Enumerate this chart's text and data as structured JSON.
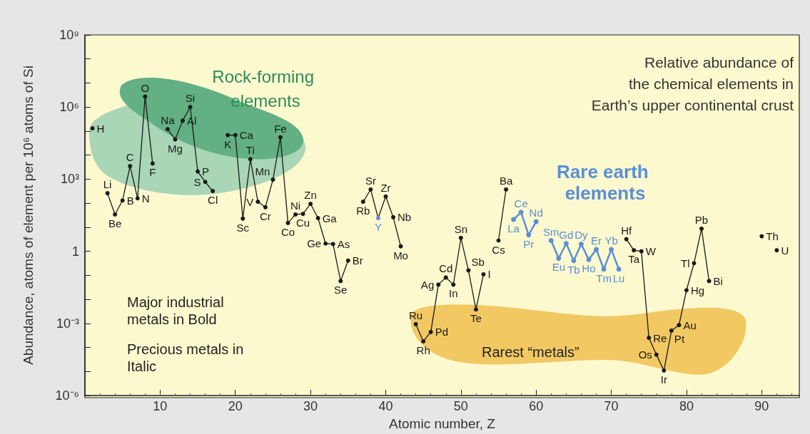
{
  "chart_data": {
    "type": "line",
    "title": "Relative abundance of\nthe chemical elements in\nEarth’s upper continental crust",
    "xlabel": "Atomic number, Z",
    "ylabel": "Abundance, atoms of element per 10⁶ atoms of Si",
    "log": true,
    "grid": false,
    "legend": false,
    "marker": "circle",
    "line_style": "solid",
    "xlim": [
      0,
      95
    ],
    "xticks": [
      10,
      20,
      30,
      40,
      50,
      60,
      70,
      80,
      90
    ],
    "ylim": [
      1e-06,
      1000000000
    ],
    "yticks": [
      {
        "value": 1e-06,
        "label": "10⁻⁶"
      },
      {
        "value": 1e-05,
        "label": null
      },
      {
        "value": 0.0001,
        "label": null
      },
      {
        "value": 0.001,
        "label": "10⁻³"
      },
      {
        "value": 0.01,
        "label": null
      },
      {
        "value": 0.1,
        "label": null
      },
      {
        "value": 1,
        "label": "1"
      },
      {
        "value": 10,
        "label": null
      },
      {
        "value": 100,
        "label": null
      },
      {
        "value": 1000,
        "label": "10³"
      },
      {
        "value": 10000,
        "label": null
      },
      {
        "value": 100000,
        "label": null
      },
      {
        "value": 1000000,
        "label": "10⁶"
      },
      {
        "value": 10000000,
        "label": null
      },
      {
        "value": 100000000,
        "label": null
      },
      {
        "value": 1000000000,
        "label": "10⁹"
      }
    ],
    "series": [
      {
        "color": "#1a1a1a",
        "x": [
          1,
          2,
          3,
          4,
          5,
          6,
          7,
          8,
          9,
          10,
          11,
          12,
          13,
          14,
          15,
          16,
          17,
          18,
          19,
          20,
          21,
          22,
          23,
          24,
          25,
          26,
          27,
          28,
          29,
          30,
          31,
          32,
          33,
          34,
          35,
          36,
          37,
          38,
          39,
          40,
          41,
          42,
          43,
          44,
          45,
          46,
          47,
          48,
          49,
          50,
          51,
          52,
          53,
          54,
          55,
          56,
          57,
          58,
          59,
          60,
          61,
          62,
          63,
          64,
          65,
          66,
          67,
          68,
          69,
          70,
          71,
          72,
          73,
          74,
          75,
          76,
          77,
          78,
          79,
          80,
          81,
          82,
          83,
          84,
          85,
          86,
          87,
          88,
          89,
          90,
          91,
          92
        ],
        "values": [
          130000,
          null,
          260,
          34,
          130,
          3500,
          160,
          2700000,
          4500,
          null,
          120000,
          45000,
          270000,
          1000000,
          2100,
          770,
          320,
          null,
          68000,
          68000,
          23,
          6800,
          115,
          68,
          950,
          55000,
          15,
          34,
          36,
          94,
          24,
          2.1,
          2,
          0.058,
          0.41,
          null,
          115,
          370,
          24,
          190,
          26,
          1.6,
          null,
          0.00093,
          0.00018,
          0.00044,
          0.041,
          0.081,
          0.041,
          3.6,
          0.16,
          0.0038,
          0.11,
          null,
          2.8,
          370,
          null,
          null,
          null,
          null,
          null,
          null,
          null,
          null,
          null,
          null,
          null,
          null,
          null,
          null,
          null,
          3.2,
          1.1,
          1,
          0.00025,
          5e-05,
          1.1e-05,
          0.0005,
          0.00085,
          0.024,
          0.32,
          8.7,
          0.058,
          null,
          null,
          null,
          null,
          null,
          null,
          4.2,
          null,
          1.1
        ],
        "colors": [
          "#1a1a1a",
          "#1a1a1a",
          "#1a1a1a",
          "#1a1a1a",
          "#1a1a1a",
          "#1a1a1a",
          "#1a1a1a",
          "#1a1a1a",
          "#1a1a1a",
          "#1a1a1a",
          "#1a1a1a",
          "#1a1a1a",
          "#1a1a1a",
          "#1a1a1a",
          "#1a1a1a",
          "#1a1a1a",
          "#1a1a1a",
          "#1a1a1a",
          "#1a1a1a",
          "#1a1a1a",
          "#1a1a1a",
          "#1a1a1a",
          "#1a1a1a",
          "#1a1a1a",
          "#1a1a1a",
          "#1a1a1a",
          "#1a1a1a",
          "#1a1a1a",
          "#1a1a1a",
          "#1a1a1a",
          "#1a1a1a",
          "#1a1a1a",
          "#1a1a1a",
          "#1a1a1a",
          "#1a1a1a",
          "#1a1a1a",
          "#1a1a1a",
          "#1a1a1a",
          "#5b8fd6",
          "#1a1a1a",
          "#1a1a1a",
          "#1a1a1a",
          "#1a1a1a",
          "#1a1a1a",
          "#1a1a1a",
          "#1a1a1a",
          "#1a1a1a",
          "#1a1a1a",
          "#1a1a1a",
          "#1a1a1a",
          "#1a1a1a",
          "#1a1a1a",
          "#1a1a1a",
          "#1a1a1a",
          "#1a1a1a",
          "#1a1a1a",
          "#1a1a1a",
          "#1a1a1a",
          "#1a1a1a",
          "#1a1a1a",
          "#1a1a1a",
          "#1a1a1a",
          "#1a1a1a",
          "#1a1a1a",
          "#1a1a1a",
          "#1a1a1a",
          "#1a1a1a",
          "#1a1a1a",
          "#1a1a1a",
          "#1a1a1a",
          "#1a1a1a",
          "#1a1a1a",
          "#1a1a1a",
          "#1a1a1a",
          "#1a1a1a",
          "#1a1a1a",
          "#1a1a1a",
          "#1a1a1a",
          "#1a1a1a",
          "#1a1a1a",
          "#1a1a1a",
          "#1a1a1a",
          "#1a1a1a",
          "#1a1a1a",
          "#1a1a1a",
          "#1a1a1a",
          "#1a1a1a",
          "#1a1a1a",
          "#1a1a1a",
          "#1a1a1a",
          "#1a1a1a",
          "#1a1a1a"
        ]
      },
      {
        "color": "#5b8fd6",
        "x": [
          57,
          58,
          59,
          60,
          61,
          62,
          63,
          64,
          65,
          66,
          67,
          68,
          69,
          70,
          71
        ],
        "values": [
          21,
          42,
          4.8,
          17,
          null,
          2.8,
          0.51,
          2.1,
          0.41,
          2,
          0.45,
          1.2,
          0.18,
          1.2,
          0.18
        ]
      }
    ],
    "annotations": [
      "Rock-forming elements",
      "Rare earth elements",
      "Rarest “metals”",
      "Major industrial metals in Bold",
      "Precious metals in Italic",
      {
        "text": "H",
        "x": 1,
        "y": 130000
      },
      {
        "text": "Li",
        "x": 3,
        "y": 260
      },
      {
        "text": "Be",
        "x": 4,
        "y": 34
      },
      {
        "text": "B",
        "x": 5,
        "y": 130
      },
      {
        "text": "C",
        "x": 6,
        "y": 3500
      },
      {
        "text": "N",
        "x": 7,
        "y": 160
      },
      {
        "text": "O",
        "x": 8,
        "y": 2700000
      },
      {
        "text": "F",
        "x": 9,
        "y": 4500
      },
      {
        "text": "Na",
        "x": 11,
        "y": 120000
      },
      {
        "text": "Mg",
        "x": 12,
        "y": 45000
      },
      {
        "text": "Al",
        "x": 13,
        "y": 270000
      },
      {
        "text": "Si",
        "x": 14,
        "y": 1000000
      },
      {
        "text": "P",
        "x": 15,
        "y": 2100
      },
      {
        "text": "S",
        "x": 16,
        "y": 770
      },
      {
        "text": "Cl",
        "x": 17,
        "y": 320
      },
      {
        "text": "K",
        "x": 19,
        "y": 68000
      },
      {
        "text": "Ca",
        "x": 20,
        "y": 68000
      },
      {
        "text": "Sc",
        "x": 21,
        "y": 23
      },
      {
        "text": "Ti",
        "x": 22,
        "y": 6800
      },
      {
        "text": "V",
        "x": 23,
        "y": 115
      },
      {
        "text": "Cr",
        "x": 24,
        "y": 68
      },
      {
        "text": "Mn",
        "x": 25,
        "y": 950
      },
      {
        "text": "Fe",
        "x": 26,
        "y": 55000
      },
      {
        "text": "Co",
        "x": 27,
        "y": 15
      },
      {
        "text": "Ni",
        "x": 28,
        "y": 34
      },
      {
        "text": "Cu",
        "x": 29,
        "y": 36
      },
      {
        "text": "Zn",
        "x": 30,
        "y": 94
      },
      {
        "text": "Ga",
        "x": 31,
        "y": 24
      },
      {
        "text": "Ge",
        "x": 32,
        "y": 2.1
      },
      {
        "text": "As",
        "x": 33,
        "y": 2
      },
      {
        "text": "Se",
        "x": 34,
        "y": 0.058
      },
      {
        "text": "Br",
        "x": 35,
        "y": 0.41
      },
      {
        "text": "Rb",
        "x": 37,
        "y": 115
      },
      {
        "text": "Sr",
        "x": 38,
        "y": 370
      },
      {
        "text": "Y",
        "x": 39,
        "y": 24
      },
      {
        "text": "Zr",
        "x": 40,
        "y": 190
      },
      {
        "text": "Nb",
        "x": 41,
        "y": 26
      },
      {
        "text": "Mo",
        "x": 42,
        "y": 1.6
      },
      {
        "text": "Ru",
        "x": 44,
        "y": 0.00093
      },
      {
        "text": "Rh",
        "x": 45,
        "y": 0.00018
      },
      {
        "text": "Pd",
        "x": 46,
        "y": 0.00044
      },
      {
        "text": "Ag",
        "x": 47,
        "y": 0.041
      },
      {
        "text": "Cd",
        "x": 48,
        "y": 0.081
      },
      {
        "text": "In",
        "x": 49,
        "y": 0.041
      },
      {
        "text": "Sn",
        "x": 50,
        "y": 3.6
      },
      {
        "text": "Sb",
        "x": 51,
        "y": 0.16
      },
      {
        "text": "Te",
        "x": 52,
        "y": 0.0038
      },
      {
        "text": "I",
        "x": 53,
        "y": 0.11
      },
      {
        "text": "Cs",
        "x": 55,
        "y": 2.8
      },
      {
        "text": "Ba",
        "x": 56,
        "y": 370
      },
      {
        "text": "La",
        "x": 57,
        "y": 21
      },
      {
        "text": "Ce",
        "x": 58,
        "y": 42
      },
      {
        "text": "Pr",
        "x": 59,
        "y": 4.8
      },
      {
        "text": "Nd",
        "x": 60,
        "y": 17
      },
      {
        "text": "Sm",
        "x": 62,
        "y": 2.8
      },
      {
        "text": "Eu",
        "x": 63,
        "y": 0.51
      },
      {
        "text": "Gd",
        "x": 64,
        "y": 2.1
      },
      {
        "text": "Tb",
        "x": 65,
        "y": 0.41
      },
      {
        "text": "Dy",
        "x": 66,
        "y": 2
      },
      {
        "text": "Ho",
        "x": 67,
        "y": 0.45
      },
      {
        "text": "Er",
        "x": 68,
        "y": 1.2
      },
      {
        "text": "Tm",
        "x": 69,
        "y": 0.18
      },
      {
        "text": "Yb",
        "x": 70,
        "y": 1.2
      },
      {
        "text": "Lu",
        "x": 71,
        "y": 0.18
      },
      {
        "text": "Hf",
        "x": 72,
        "y": 3.2
      },
      {
        "text": "Ta",
        "x": 73,
        "y": 1.1
      },
      {
        "text": "W",
        "x": 74,
        "y": 1
      },
      {
        "text": "Re",
        "x": 75,
        "y": 0.00025
      },
      {
        "text": "Os",
        "x": 76,
        "y": 5e-05
      },
      {
        "text": "Ir",
        "x": 77,
        "y": 1.1e-05
      },
      {
        "text": "Pt",
        "x": 78,
        "y": 0.0005
      },
      {
        "text": "Au",
        "x": 79,
        "y": 0.00085
      },
      {
        "text": "Hg",
        "x": 80,
        "y": 0.024
      },
      {
        "text": "Tl",
        "x": 81,
        "y": 0.32
      },
      {
        "text": "Pb",
        "x": 82,
        "y": 8.7
      },
      {
        "text": "Bi",
        "x": 83,
        "y": 0.058
      },
      {
        "text": "Th",
        "x": 90,
        "y": 4.2
      },
      {
        "text": "U",
        "x": 92,
        "y": 1.1
      }
    ]
  }
}
